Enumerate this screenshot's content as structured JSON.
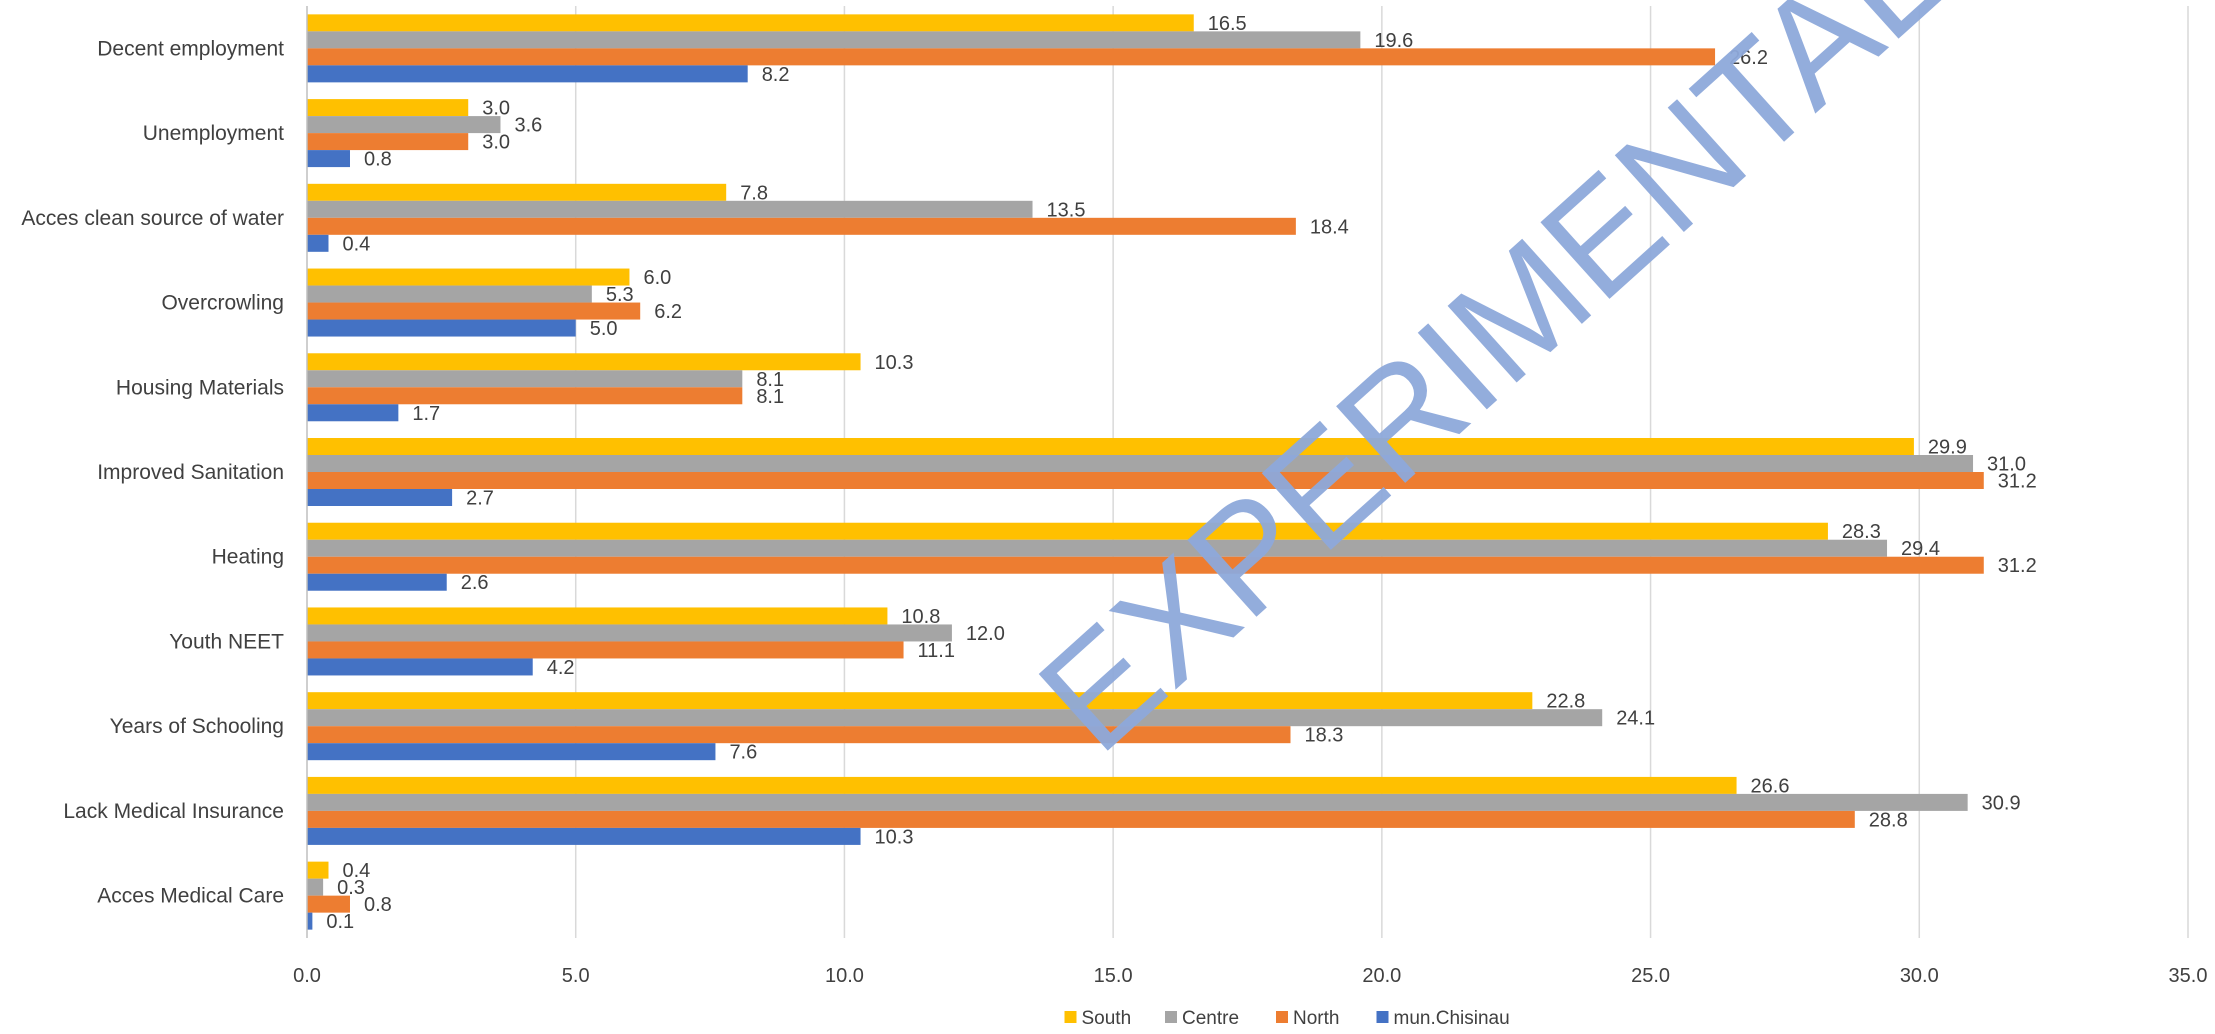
{
  "chart_data": {
    "type": "bar",
    "orientation": "horizontal",
    "categories": [
      "Decent employment",
      "Unemployment",
      "Acces clean source of water",
      "Overcrowling",
      "Housing Materials",
      "Improved Sanitation",
      "Heating",
      "Youth NEET",
      "Years of Schooling",
      "Lack Medical Insurance",
      "Acces Medical Care"
    ],
    "series": [
      {
        "name": "South",
        "color": "#FFC000",
        "values": [
          16.5,
          3.0,
          7.8,
          6.0,
          10.3,
          29.9,
          28.3,
          10.8,
          22.8,
          26.6,
          0.4
        ]
      },
      {
        "name": "Centre",
        "color": "#A5A5A5",
        "values": [
          19.6,
          3.6,
          13.5,
          5.3,
          8.1,
          31.0,
          29.4,
          12.0,
          24.1,
          30.9,
          0.3
        ]
      },
      {
        "name": "North",
        "color": "#ED7D31",
        "values": [
          26.2,
          3.0,
          18.4,
          6.2,
          8.1,
          31.2,
          31.2,
          11.1,
          18.3,
          28.8,
          0.8
        ]
      },
      {
        "name": "mun.Chisinau",
        "color": "#4472C4",
        "values": [
          8.2,
          0.8,
          0.4,
          5.0,
          1.7,
          2.7,
          2.6,
          4.2,
          7.6,
          10.3,
          0.1
        ]
      }
    ],
    "x_ticks": [
      "0.0",
      "5.0",
      "10.0",
      "15.0",
      "20.0",
      "25.0",
      "30.0",
      "35.0"
    ],
    "xlim": [
      0,
      35
    ],
    "grid": true,
    "legend_position": "bottom",
    "watermark": "EXPERIMENTAL"
  }
}
